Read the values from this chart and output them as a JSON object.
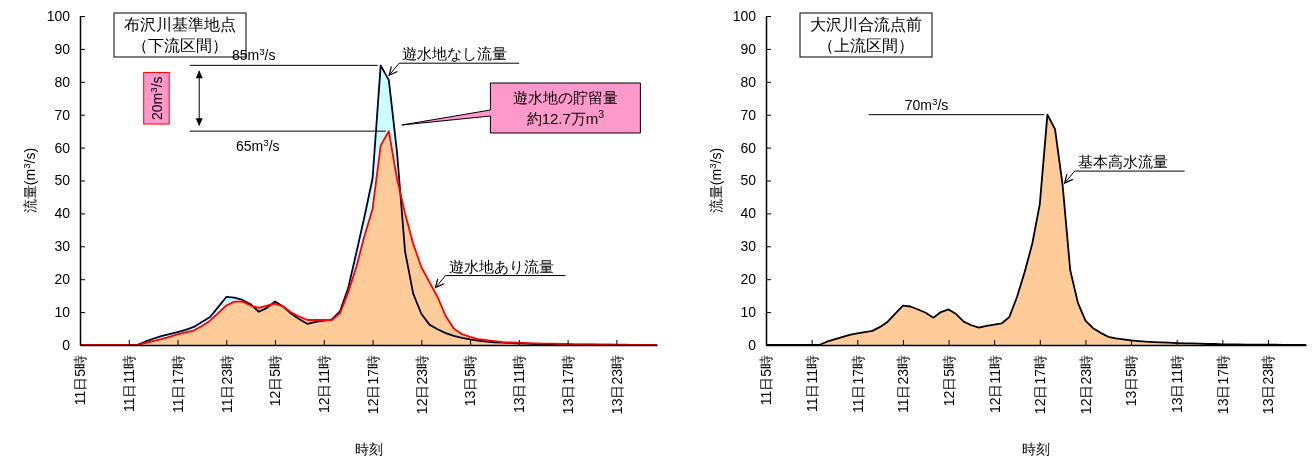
{
  "chart_data": [
    {
      "type": "area",
      "title": "布沢川基準地点",
      "subtitle": "（下流区間）",
      "xlabel": "時刻",
      "ylabel": "流量(m$^{3}$/s)",
      "ylim": [
        0,
        100
      ],
      "yticks": [
        0,
        10,
        20,
        30,
        40,
        50,
        60,
        70,
        80,
        90,
        100
      ],
      "categories": [
        "11日5時",
        null,
        null,
        null,
        null,
        null,
        "11日11時",
        null,
        null,
        null,
        null,
        null,
        "11日17時",
        null,
        null,
        null,
        null,
        null,
        "11日23時",
        null,
        null,
        null,
        null,
        null,
        "12日5時",
        null,
        null,
        null,
        null,
        null,
        "12日11時",
        null,
        null,
        null,
        null,
        null,
        "12日17時",
        null,
        null,
        null,
        null,
        null,
        "12日23時",
        null,
        null,
        null,
        null,
        null,
        "13日5時",
        null,
        null,
        null,
        null,
        null,
        "13日11時",
        null,
        null,
        null,
        null,
        null,
        "13日17時",
        null,
        null,
        null,
        null,
        null,
        "13日23時",
        null,
        null,
        null,
        null,
        null
      ],
      "series": [
        {
          "name": "遊水地なし流量",
          "color": "#ccffff",
          "values": [
            0,
            0,
            0,
            0,
            0,
            0,
            0,
            0,
            1,
            1.9,
            2.7,
            3.3,
            3.9,
            4.6,
            5.5,
            7,
            8.5,
            11.5,
            14.6,
            14.4,
            13.7,
            12.4,
            10.1,
            11.3,
            13.2,
            11.7,
            9.5,
            7.8,
            6.4,
            7,
            7.4,
            7.8,
            10.3,
            17.3,
            28,
            39,
            50.6,
            85,
            80.5,
            58.8,
            28.4,
            15.6,
            9.5,
            6.2,
            4.8,
            3.6,
            2.8,
            2.2,
            1.7,
            1.3,
            1,
            0.8,
            0.7,
            0.6,
            0.5,
            0.4,
            0.3,
            0.3,
            0.2,
            0.2,
            0.1,
            0.1,
            0.1,
            0.1,
            0.1,
            0.1,
            0,
            0,
            0,
            0,
            0,
            0
          ]
        },
        {
          "name": "遊水地あり流量",
          "color": "#ffcc99",
          "values": [
            0,
            0,
            0,
            0,
            0,
            0,
            0,
            0,
            0.6,
            1.2,
            1.8,
            2.5,
            3.2,
            3.8,
            4.4,
            5.8,
            7.4,
            9.7,
            12,
            13.2,
            13.2,
            12,
            11.3,
            12,
            12.6,
            11.7,
            9.9,
            8.6,
            7.6,
            7.6,
            7.6,
            7.6,
            9.7,
            16,
            23.7,
            33.1,
            41.3,
            60.6,
            65,
            50.6,
            40,
            30.8,
            23.7,
            19.1,
            14.6,
            8.8,
            5,
            3.3,
            2.5,
            1.8,
            1.5,
            1.2,
            0.9,
            0.8,
            0.7,
            0.6,
            0.5,
            0.4,
            0.4,
            0.3,
            0.3,
            0.2,
            0.2,
            0.2,
            0.1,
            0.1,
            0.1,
            0.1,
            0,
            0,
            0,
            0
          ]
        }
      ],
      "ref_lines": [
        {
          "axis": "y",
          "value": 85,
          "label": "85m$^{3}$/s"
        },
        {
          "axis": "y",
          "value": 65,
          "label": "65m$^{3}$/s"
        }
      ],
      "annotations": [
        "20m$^{3}$/s",
        "遊水地の貯留量",
        "約12.7万m$^{3}$"
      ]
    },
    {
      "type": "area",
      "title": "大沢川合流点前",
      "subtitle": "（上流区間）",
      "xlabel": "時刻",
      "ylabel": "流量(m$^{3}$/s)",
      "ylim": [
        0,
        100
      ],
      "yticks": [
        0,
        10,
        20,
        30,
        40,
        50,
        60,
        70,
        80,
        90,
        100
      ],
      "categories": [
        "11日5時",
        null,
        null,
        null,
        null,
        null,
        "11日11時",
        null,
        null,
        null,
        null,
        null,
        "11日17時",
        null,
        null,
        null,
        null,
        null,
        "11日23時",
        null,
        null,
        null,
        null,
        null,
        "12日5時",
        null,
        null,
        null,
        null,
        null,
        "12日11時",
        null,
        null,
        null,
        null,
        null,
        "12日17時",
        null,
        null,
        null,
        null,
        null,
        "12日23時",
        null,
        null,
        null,
        null,
        null,
        "13日5時",
        null,
        null,
        null,
        null,
        null,
        "13日11時",
        null,
        null,
        null,
        null,
        null,
        "13日17時",
        null,
        null,
        null,
        null,
        null,
        "13日23時",
        null,
        null,
        null,
        null,
        null
      ],
      "series": [
        {
          "name": "基本高水流量",
          "color": "#ffcc99",
          "values": [
            0,
            0,
            0,
            0,
            0,
            0,
            0,
            0,
            1,
            1.7,
            2.4,
            3.1,
            3.5,
            3.9,
            4.3,
            5.5,
            7.1,
            9.5,
            12,
            11.7,
            10.8,
            9.8,
            8.3,
            10,
            10.8,
            9.4,
            7.1,
            6,
            5.3,
            5.8,
            6.2,
            6.6,
            8.5,
            14.6,
            22.1,
            30.7,
            42.8,
            70,
            65.6,
            48.6,
            22.7,
            12.9,
            7.4,
            5.1,
            3.7,
            2.5,
            2,
            1.7,
            1.4,
            1.2,
            1,
            0.9,
            0.8,
            0.7,
            0.6,
            0.5,
            0.5,
            0.4,
            0.3,
            0.3,
            0.2,
            0.2,
            0.2,
            0.1,
            0.1,
            0.1,
            0.1,
            0.1,
            0,
            0,
            0,
            0
          ]
        }
      ],
      "ref_lines": [
        {
          "axis": "y",
          "value": 70,
          "label": "70m$^{3}$/s"
        }
      ]
    }
  ]
}
